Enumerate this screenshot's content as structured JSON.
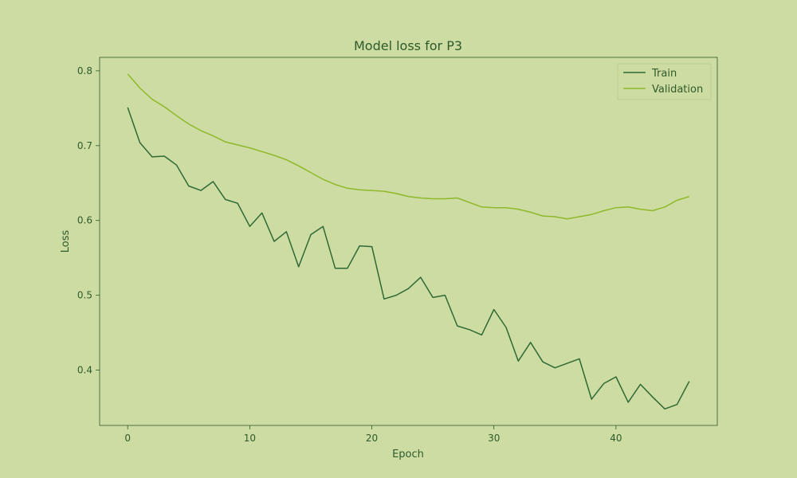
{
  "colors": {
    "background": "#cddca3",
    "text": "#2f5a2a",
    "train": "#2f6a34",
    "validation": "#8fb82a"
  },
  "chart_data": {
    "type": "line",
    "title": "Model loss for P3",
    "xlabel": "Epoch",
    "ylabel": "Loss",
    "xlim": [
      -2.3,
      48.3
    ],
    "ylim": [
      0.326,
      0.818
    ],
    "xticks": [
      0,
      10,
      20,
      30,
      40
    ],
    "yticks": [
      0.4,
      0.5,
      0.6,
      0.7,
      0.8
    ],
    "legend_position": "top-right",
    "grid": false,
    "x": [
      0,
      1,
      2,
      3,
      4,
      5,
      6,
      7,
      8,
      9,
      10,
      11,
      12,
      13,
      14,
      15,
      16,
      17,
      18,
      19,
      20,
      21,
      22,
      23,
      24,
      25,
      26,
      27,
      28,
      29,
      30,
      31,
      32,
      33,
      34,
      35,
      36,
      37,
      38,
      39,
      40,
      41,
      42,
      43,
      44,
      45,
      46
    ],
    "series": [
      {
        "name": "Train",
        "color": "#2f6a34",
        "values": [
          0.751,
          0.704,
          0.685,
          0.686,
          0.674,
          0.646,
          0.64,
          0.652,
          0.628,
          0.623,
          0.592,
          0.61,
          0.572,
          0.585,
          0.538,
          0.581,
          0.592,
          0.536,
          0.536,
          0.566,
          0.565,
          0.495,
          0.5,
          0.509,
          0.524,
          0.497,
          0.5,
          0.459,
          0.454,
          0.447,
          0.481,
          0.457,
          0.412,
          0.437,
          0.411,
          0.403,
          0.409,
          0.415,
          0.361,
          0.382,
          0.391,
          0.357,
          0.381,
          0.364,
          0.348,
          0.354,
          0.385
        ]
      },
      {
        "name": "Validation",
        "color": "#8fb82a",
        "values": [
          0.796,
          0.777,
          0.762,
          0.752,
          0.74,
          0.729,
          0.72,
          0.713,
          0.705,
          0.701,
          0.697,
          0.692,
          0.687,
          0.681,
          0.673,
          0.664,
          0.655,
          0.648,
          0.643,
          0.641,
          0.64,
          0.639,
          0.636,
          0.632,
          0.63,
          0.629,
          0.629,
          0.63,
          0.624,
          0.618,
          0.617,
          0.617,
          0.615,
          0.611,
          0.606,
          0.605,
          0.602,
          0.605,
          0.608,
          0.613,
          0.617,
          0.618,
          0.615,
          0.613,
          0.618,
          0.627,
          0.632
        ]
      }
    ]
  }
}
